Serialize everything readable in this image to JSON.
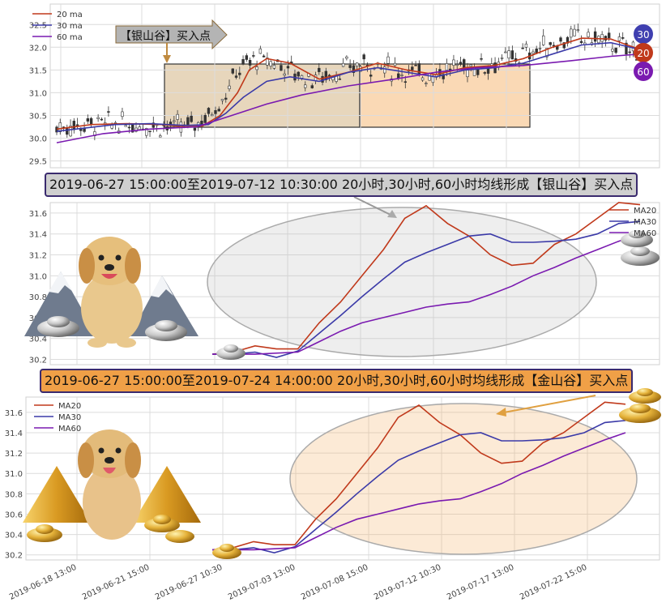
{
  "chart_data": [
    {
      "type": "candlestick",
      "ylim": [
        29.35,
        32.95
      ],
      "yticks": [
        29.5,
        30.0,
        30.5,
        31.0,
        31.5,
        32.0,
        32.5
      ],
      "ytick_labels": [
        "29.5",
        "30.0",
        "30.5",
        "31.0",
        "31.5",
        "32.0",
        "32.5"
      ],
      "grid": true,
      "legend": {
        "placement": "top-left",
        "entries": [
          "20 ma",
          "30 ma",
          "60 ma"
        ]
      },
      "series": [
        {
          "name": "20 ma",
          "color": "#c0391b",
          "x": [
            0,
            0.06,
            0.12,
            0.18,
            0.22,
            0.25,
            0.28,
            0.31,
            0.33,
            0.36,
            0.4,
            0.45,
            0.5,
            0.55,
            0.6,
            0.65,
            0.7,
            0.75,
            0.8,
            0.85,
            0.9,
            0.95,
            1.0
          ],
          "y": [
            30.2,
            30.3,
            30.32,
            30.3,
            30.25,
            30.27,
            30.5,
            31.0,
            31.5,
            31.75,
            31.65,
            31.3,
            31.45,
            31.65,
            31.5,
            31.4,
            31.55,
            31.6,
            31.75,
            32.0,
            32.2,
            32.18,
            31.95
          ]
        },
        {
          "name": "30 ma",
          "color": "#3b3aa8",
          "x": [
            0,
            0.1,
            0.16,
            0.22,
            0.26,
            0.29,
            0.32,
            0.36,
            0.4,
            0.45,
            0.5,
            0.55,
            0.6,
            0.65,
            0.7,
            0.75,
            0.8,
            0.85,
            0.9,
            0.95,
            1.0
          ],
          "y": [
            30.15,
            30.3,
            30.32,
            30.28,
            30.3,
            30.55,
            30.9,
            31.25,
            31.35,
            31.25,
            31.45,
            31.55,
            31.45,
            31.35,
            31.5,
            31.55,
            31.65,
            31.85,
            32.05,
            32.1,
            31.95
          ]
        },
        {
          "name": "60 ma",
          "color": "#7a1ab0",
          "x": [
            0,
            0.08,
            0.16,
            0.24,
            0.3,
            0.36,
            0.42,
            0.5,
            0.58,
            0.65,
            0.72,
            0.8,
            0.88,
            0.95,
            1.0
          ],
          "y": [
            29.9,
            30.1,
            30.2,
            30.25,
            30.5,
            30.75,
            30.95,
            31.15,
            31.3,
            31.45,
            31.55,
            31.6,
            31.7,
            31.8,
            31.85
          ]
        }
      ],
      "annotation": "【银山谷】买入点",
      "badges": [
        "30",
        "20",
        "60"
      ]
    },
    {
      "type": "line",
      "ylim": [
        30.15,
        31.7
      ],
      "yticks": [
        30.2,
        30.4,
        30.6,
        30.8,
        31.0,
        31.2,
        31.4,
        31.6
      ],
      "ytick_labels": [
        "30.2",
        "30.4",
        "30.6",
        "30.8",
        "31.0",
        "31.2",
        "31.4",
        "31.6"
      ],
      "grid": true,
      "legend": {
        "placement": "top-right",
        "entries": [
          "MA20",
          "MA30",
          "MA60"
        ]
      },
      "series": [
        {
          "name": "MA20",
          "color": "#c0391b",
          "x": [
            0,
            0.05,
            0.1,
            0.15,
            0.2,
            0.25,
            0.3,
            0.35,
            0.4,
            0.45,
            0.5,
            0.55,
            0.6,
            0.65,
            0.7,
            0.75,
            0.8,
            0.85,
            0.9,
            0.95,
            1.0
          ],
          "y": [
            30.25,
            30.27,
            30.33,
            30.3,
            30.3,
            30.55,
            30.75,
            31.0,
            31.25,
            31.55,
            31.67,
            31.5,
            31.38,
            31.2,
            31.1,
            31.12,
            31.3,
            31.4,
            31.55,
            31.7,
            31.68
          ]
        },
        {
          "name": "MA30",
          "color": "#3b3aa8",
          "x": [
            0,
            0.05,
            0.1,
            0.15,
            0.2,
            0.25,
            0.3,
            0.35,
            0.4,
            0.45,
            0.5,
            0.55,
            0.6,
            0.65,
            0.7,
            0.75,
            0.8,
            0.85,
            0.9,
            0.95,
            1.0
          ],
          "y": [
            30.25,
            30.25,
            30.27,
            30.22,
            30.28,
            30.45,
            30.62,
            30.8,
            30.97,
            31.13,
            31.22,
            31.3,
            31.38,
            31.4,
            31.32,
            31.32,
            31.33,
            31.35,
            31.4,
            31.5,
            31.52
          ]
        },
        {
          "name": "MA60",
          "color": "#7a1ab0",
          "x": [
            0,
            0.1,
            0.2,
            0.25,
            0.3,
            0.35,
            0.4,
            0.45,
            0.5,
            0.55,
            0.6,
            0.65,
            0.7,
            0.75,
            0.8,
            0.85,
            0.9,
            0.95,
            1.0
          ],
          "y": [
            30.25,
            30.25,
            30.27,
            30.37,
            30.47,
            30.55,
            30.6,
            30.65,
            30.7,
            30.73,
            30.75,
            30.82,
            30.9,
            31.0,
            31.08,
            31.17,
            31.25,
            31.33,
            31.4
          ]
        }
      ],
      "annotation": "2019-06-27 15:00:00至2019-07-12 10:30:00 20小时,30小时,60小时均线形成【银山谷】买入点"
    },
    {
      "type": "line",
      "ylim": [
        30.15,
        31.75
      ],
      "yticks": [
        30.2,
        30.4,
        30.6,
        30.8,
        31.0,
        31.2,
        31.4,
        31.6
      ],
      "ytick_labels": [
        "30.2",
        "30.4",
        "30.6",
        "30.8",
        "31.0",
        "31.2",
        "31.4",
        "31.6"
      ],
      "grid": true,
      "legend": {
        "placement": "top-left",
        "entries": [
          "MA20",
          "MA30",
          "MA60"
        ]
      },
      "series": [
        {
          "name": "MA20",
          "color": "#c0391b",
          "x": [
            0,
            0.05,
            0.1,
            0.15,
            0.2,
            0.25,
            0.3,
            0.35,
            0.4,
            0.45,
            0.5,
            0.55,
            0.6,
            0.65,
            0.7,
            0.75,
            0.8,
            0.85,
            0.9,
            0.95,
            1.0
          ],
          "y": [
            30.25,
            30.27,
            30.33,
            30.3,
            30.3,
            30.55,
            30.75,
            31.0,
            31.25,
            31.55,
            31.67,
            31.5,
            31.38,
            31.2,
            31.1,
            31.12,
            31.3,
            31.4,
            31.55,
            31.7,
            31.68
          ]
        },
        {
          "name": "MA30",
          "color": "#3b3aa8",
          "x": [
            0,
            0.05,
            0.1,
            0.15,
            0.2,
            0.25,
            0.3,
            0.35,
            0.4,
            0.45,
            0.5,
            0.55,
            0.6,
            0.65,
            0.7,
            0.75,
            0.8,
            0.85,
            0.9,
            0.95,
            1.0
          ],
          "y": [
            30.25,
            30.25,
            30.27,
            30.22,
            30.28,
            30.45,
            30.62,
            30.8,
            30.97,
            31.13,
            31.22,
            31.3,
            31.38,
            31.4,
            31.32,
            31.32,
            31.33,
            31.35,
            31.4,
            31.5,
            31.52
          ]
        },
        {
          "name": "MA60",
          "color": "#7a1ab0",
          "x": [
            0,
            0.1,
            0.2,
            0.25,
            0.3,
            0.35,
            0.4,
            0.45,
            0.5,
            0.55,
            0.6,
            0.65,
            0.7,
            0.75,
            0.8,
            0.85,
            0.9,
            0.95,
            1.0
          ],
          "y": [
            30.25,
            30.25,
            30.27,
            30.37,
            30.47,
            30.55,
            30.6,
            30.65,
            30.7,
            30.73,
            30.75,
            30.82,
            30.9,
            31.0,
            31.08,
            31.17,
            31.25,
            31.33,
            31.4
          ]
        }
      ],
      "annotation": "2019-06-27 15:00:00至2019-07-24 14:00:00 20小时,30小时,60小时均线形成【金山谷】买入点",
      "xtick_labels": [
        "2019-06-18 13:00",
        "2019-06-21 15:00",
        "2019-06-27 10:30",
        "2019-07-03 13:00",
        "2019-07-08 15:00",
        "2019-07-12 10:30",
        "2019-07-17 13:00",
        "2019-07-22 15:00"
      ]
    }
  ]
}
